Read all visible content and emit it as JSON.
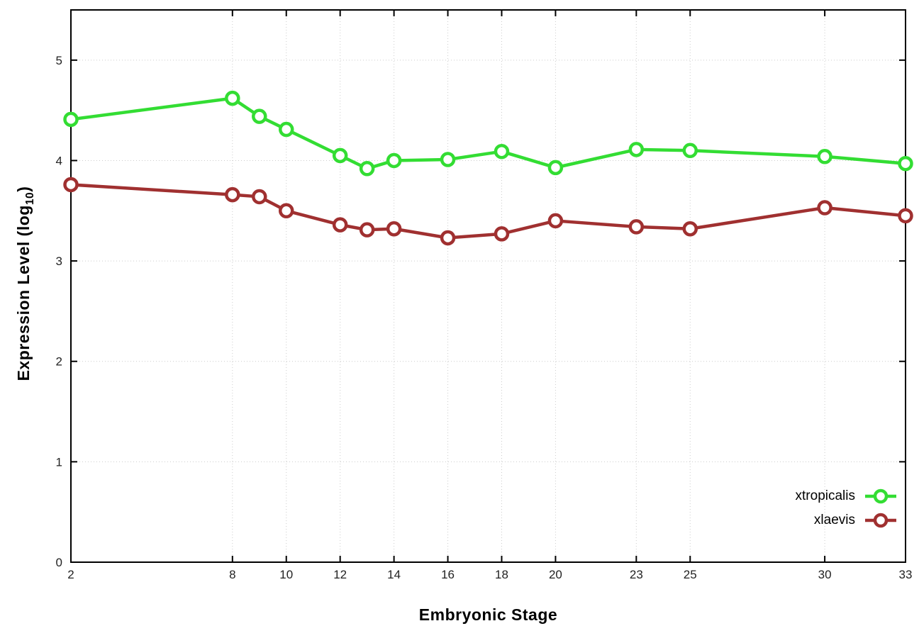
{
  "chart_data": {
    "type": "line",
    "title": "",
    "xlabel": "Embryonic Stage",
    "ylabel_prefix": "Expression Level (log",
    "ylabel_sub": "10",
    "ylabel_suffix": ")",
    "x": [
      2,
      8,
      9,
      10,
      12,
      13,
      14,
      16,
      18,
      20,
      23,
      25,
      30,
      33
    ],
    "xtick_labels": [
      2,
      8,
      10,
      12,
      14,
      16,
      18,
      20,
      23,
      25,
      30,
      33
    ],
    "ytick_labels": [
      0,
      1,
      2,
      3,
      4,
      5
    ],
    "xlim": [
      2,
      33
    ],
    "ylim": [
      0,
      5.5
    ],
    "grid": true,
    "grid_color": "#cccccc",
    "legend_position": "bottom-right",
    "series": [
      {
        "name": "xtropicalis",
        "color": "#33dd33",
        "values": [
          4.41,
          4.62,
          4.44,
          4.31,
          4.05,
          3.92,
          4.0,
          4.01,
          4.09,
          3.93,
          4.11,
          4.1,
          4.04,
          3.97
        ]
      },
      {
        "name": "xlaevis",
        "color": "#a03030",
        "values": [
          3.76,
          3.66,
          3.64,
          3.5,
          3.36,
          3.31,
          3.32,
          3.23,
          3.27,
          3.4,
          3.34,
          3.32,
          3.53,
          3.45
        ]
      }
    ]
  }
}
